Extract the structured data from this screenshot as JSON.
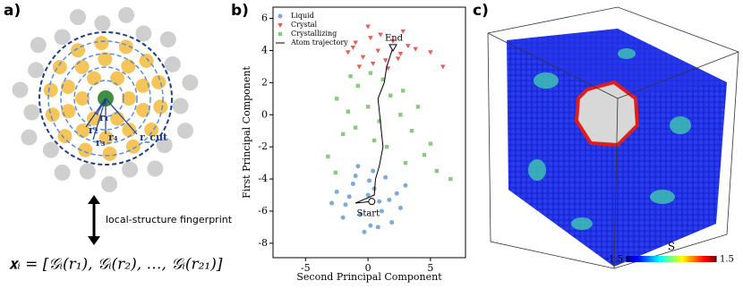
{
  "panel_labels": [
    "a)",
    "b)",
    "c)"
  ],
  "diagram": {
    "radius_labels": [
      "r₁",
      "r₂",
      "r₃",
      "r₄",
      "r_cut"
    ],
    "arrow_label": "local-structure fingerprint",
    "equation": "𝐱ᵢ = [𝒢ᵢ(r₁), 𝒢ᵢ(r₂), …, 𝒢ᵢ(r₂₁)]"
  },
  "chart_data": {
    "type": "scatter",
    "x_label": "Second Principal Component",
    "y_label": "First Principal Component",
    "xlim": [
      -7.6,
      7.8
    ],
    "ylim": [
      -8.9,
      6.7
    ],
    "xticks": [
      -5,
      0,
      5
    ],
    "yticks": [
      -8,
      -6,
      -4,
      -2,
      0,
      2,
      4,
      6
    ],
    "legend": "upper left",
    "annotations": [
      "Start",
      "End"
    ],
    "series": [
      {
        "name": "Liquid",
        "color": "#4f8fc9",
        "marker": "circle",
        "x": [
          -2.5,
          -1.8,
          -1.2,
          -0.6,
          0.0,
          0.5,
          1.1,
          1.7,
          2.3,
          -2.0,
          -1.0,
          0.2,
          1.4,
          2.6,
          -0.3,
          0.8,
          -1.5,
          1.9,
          0.4,
          -2.9,
          3.0,
          -0.8,
          0.9,
          0.1
        ],
        "values": [
          -4.8,
          -5.6,
          -4.3,
          -6.2,
          -5.0,
          -4.6,
          -6.0,
          -5.3,
          -4.9,
          -6.4,
          -3.8,
          -6.9,
          -3.9,
          -5.8,
          -7.3,
          -7.0,
          -5.1,
          -6.7,
          -3.5,
          -5.5,
          -4.4,
          -3.2,
          -5.4,
          -4.1
        ]
      },
      {
        "name": "Crystal",
        "color": "#e3261e",
        "marker": "triangle",
        "x": [
          -1.6,
          -1.0,
          -0.4,
          0.2,
          0.8,
          1.4,
          2.0,
          2.6,
          3.2,
          -0.7,
          0.4,
          1.6,
          2.4,
          -1.2,
          1.0,
          3.8,
          5.0,
          6.0,
          2.8,
          0.0
        ],
        "values": [
          3.9,
          4.5,
          3.6,
          4.8,
          4.0,
          3.4,
          4.6,
          3.8,
          4.3,
          3.0,
          3.2,
          2.9,
          3.5,
          4.2,
          5.0,
          4.1,
          3.9,
          3.0,
          5.2,
          5.5
        ]
      },
      {
        "name": "Crystallizing",
        "color": "#62b756",
        "marker": "square",
        "x": [
          -2.5,
          -1.6,
          -0.8,
          0.0,
          0.9,
          1.8,
          2.6,
          -2.0,
          -1.0,
          0.5,
          1.5,
          2.8,
          -1.4,
          0.2,
          1.2,
          3.5,
          4.5,
          5.5,
          6.6,
          3.0,
          -3.2,
          -2.6,
          4.0,
          5.0
        ],
        "values": [
          1.0,
          0.2,
          1.8,
          0.5,
          -0.4,
          1.2,
          0.0,
          -1.2,
          -0.8,
          -1.6,
          -2.0,
          1.5,
          2.4,
          2.6,
          2.2,
          -1.0,
          -2.5,
          -3.5,
          -4.0,
          -3.0,
          -2.6,
          -3.6,
          0.5,
          -1.8
        ]
      },
      {
        "name": "Atom trajectory",
        "color": "#000000",
        "marker": "line",
        "x": [
          0.3,
          -1.0,
          0.5,
          0.6,
          0.9,
          1.2,
          1.0,
          0.8,
          1.3,
          1.5,
          2.0
        ],
        "values": [
          -5.4,
          -5.5,
          -5.0,
          -4.0,
          -3.2,
          -2.0,
          -0.5,
          1.0,
          2.0,
          3.0,
          4.2
        ]
      }
    ]
  },
  "colorbar": {
    "label": "S",
    "clim": [
      -1.5,
      1.5
    ],
    "ticks": [
      -1.5,
      1.5
    ]
  }
}
